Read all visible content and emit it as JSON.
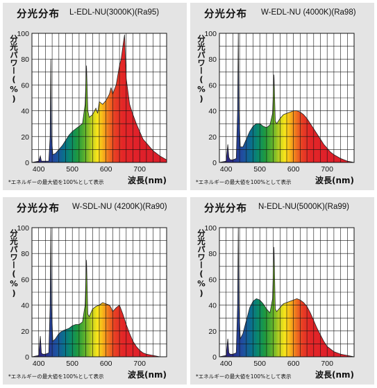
{
  "panels": [
    {
      "title": "分光分布",
      "model": "L-EDL-NU(3000K)(Ra95)",
      "ylabel": "分光パワー(%)",
      "xlabel": "波長(nm)",
      "note": "*エネルギーの最大値を100%として表示"
    },
    {
      "title": "分光分布",
      "model": "W-EDL-NU (4000K)(Ra98)",
      "ylabel": "分光パワー(%)",
      "xlabel": "波長(nm)",
      "note": "*エネルギーの最大値を100%として表示"
    },
    {
      "title": "分光分布",
      "model": "W-SDL-NU (4200K)(Ra90)",
      "ylabel": "分光パワー(%)",
      "xlabel": "波長(nm)",
      "note": "*エネルギーの最大値を100%として表示"
    },
    {
      "title": "分光分布",
      "model": "N-EDL-NU(5000K)(Ra99)",
      "ylabel": "分光パワー(%)",
      "xlabel": "波長(nm)",
      "note": "*エネルギーの最大値を100%として表示"
    }
  ],
  "chart_data": [
    {
      "type": "area",
      "title": "分光分布 L-EDL-NU(3000K)(Ra95)",
      "xlabel": "波長(nm)",
      "ylabel": "分光パワー(%)",
      "xlim": [
        380,
        780
      ],
      "ylim": [
        0,
        100
      ],
      "xticks": [
        400,
        500,
        600,
        700
      ],
      "yticks": [
        0,
        20,
        40,
        60,
        80,
        100
      ],
      "grid": true,
      "x": [
        380,
        400,
        405,
        408,
        412,
        420,
        430,
        434,
        436,
        438,
        442,
        450,
        460,
        470,
        480,
        490,
        500,
        510,
        520,
        530,
        538,
        542,
        546,
        550,
        560,
        570,
        575,
        580,
        590,
        600,
        610,
        615,
        620,
        630,
        640,
        645,
        650,
        655,
        660,
        670,
        680,
        690,
        700,
        710,
        720,
        740,
        760,
        780
      ],
      "y": [
        0,
        1,
        5,
        1,
        1,
        1,
        1,
        20,
        80,
        20,
        6,
        7,
        10,
        13,
        17,
        21,
        24,
        26,
        28,
        30,
        45,
        75,
        40,
        35,
        37,
        42,
        38,
        47,
        45,
        48,
        53,
        58,
        53,
        60,
        75,
        80,
        90,
        99,
        65,
        45,
        37,
        30,
        24,
        18,
        15,
        9,
        5,
        2
      ]
    },
    {
      "type": "area",
      "title": "分光分布 W-EDL-NU (4000K)(Ra98)",
      "xlabel": "波長(nm)",
      "ylabel": "分光パワー(%)",
      "xlim": [
        380,
        780
      ],
      "ylim": [
        0,
        100
      ],
      "xticks": [
        400,
        500,
        600,
        700
      ],
      "yticks": [
        0,
        20,
        40,
        60,
        80,
        100
      ],
      "grid": true,
      "x": [
        380,
        400,
        405,
        408,
        412,
        420,
        430,
        434,
        436,
        438,
        442,
        450,
        460,
        470,
        480,
        490,
        500,
        510,
        520,
        530,
        538,
        542,
        546,
        550,
        560,
        570,
        580,
        590,
        600,
        610,
        620,
        630,
        640,
        650,
        660,
        670,
        680,
        690,
        700,
        710,
        720,
        740,
        760,
        780
      ],
      "y": [
        0,
        1,
        14,
        4,
        2,
        2,
        3,
        40,
        100,
        40,
        12,
        12,
        18,
        24,
        28,
        30,
        30,
        28,
        27,
        29,
        38,
        68,
        32,
        30,
        34,
        37,
        38,
        39,
        40,
        40,
        39,
        37,
        34,
        30,
        26,
        22,
        18,
        14,
        11,
        8,
        6,
        3,
        1,
        0
      ]
    },
    {
      "type": "area",
      "title": "分光分布 W-SDL-NU (4200K)(Ra90)",
      "xlabel": "波長(nm)",
      "ylabel": "分光パワー(%)",
      "xlim": [
        380,
        780
      ],
      "ylim": [
        0,
        100
      ],
      "xticks": [
        400,
        500,
        600,
        700
      ],
      "yticks": [
        0,
        20,
        40,
        60,
        80,
        100
      ],
      "grid": true,
      "x": [
        380,
        400,
        405,
        408,
        412,
        420,
        430,
        434,
        436,
        438,
        442,
        450,
        460,
        470,
        480,
        490,
        500,
        510,
        520,
        530,
        538,
        542,
        546,
        550,
        560,
        570,
        580,
        590,
        600,
        610,
        615,
        620,
        630,
        640,
        650,
        660,
        670,
        680,
        690,
        700,
        710,
        720,
        740,
        760,
        780
      ],
      "y": [
        0,
        1,
        16,
        3,
        2,
        2,
        3,
        40,
        100,
        40,
        12,
        14,
        18,
        20,
        21,
        22,
        24,
        25,
        25,
        27,
        40,
        75,
        33,
        31,
        37,
        39,
        40,
        42,
        41,
        40,
        38,
        35,
        38,
        40,
        33,
        25,
        18,
        12,
        8,
        5,
        3,
        2,
        1,
        0,
        0
      ]
    },
    {
      "type": "area",
      "title": "分光分布 N-EDL-NU(5000K)(Ra99)",
      "xlabel": "波長(nm)",
      "ylabel": "分光パワー(%)",
      "xlim": [
        380,
        780
      ],
      "ylim": [
        0,
        100
      ],
      "xticks": [
        400,
        500,
        600,
        700
      ],
      "yticks": [
        0,
        20,
        40,
        60,
        80,
        100
      ],
      "grid": true,
      "x": [
        380,
        400,
        405,
        408,
        412,
        420,
        430,
        434,
        436,
        438,
        442,
        450,
        460,
        470,
        480,
        490,
        500,
        510,
        520,
        530,
        538,
        542,
        546,
        550,
        560,
        570,
        580,
        590,
        600,
        610,
        620,
        630,
        640,
        650,
        660,
        670,
        680,
        690,
        700,
        710,
        720,
        740,
        760,
        780
      ],
      "y": [
        0,
        1,
        14,
        3,
        2,
        2,
        3,
        40,
        100,
        40,
        14,
        18,
        28,
        38,
        43,
        45,
        44,
        41,
        37,
        34,
        45,
        85,
        37,
        35,
        38,
        41,
        42,
        43,
        44,
        45,
        44,
        42,
        39,
        34,
        28,
        22,
        17,
        12,
        8,
        6,
        4,
        2,
        1,
        0
      ]
    }
  ]
}
